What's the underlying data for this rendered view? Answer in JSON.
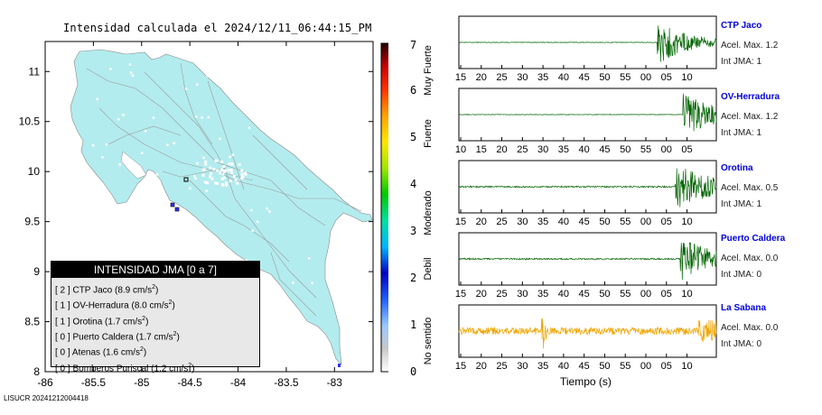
{
  "map": {
    "title": "Intensidad calculada el 2024/12/11_06:44:15_PM",
    "y_ticks": [
      "11",
      "10.5",
      "10",
      "9.5",
      "9",
      "8.5",
      "8"
    ],
    "x_ticks": [
      "-86",
      "-85.5",
      "-85",
      "-84.5",
      "-84",
      "-83.5",
      "-83"
    ],
    "footer": "LISUCR 20241212004418",
    "land_color": "#b3ecee"
  },
  "colorbar": {
    "ticks": [
      "7",
      "6",
      "5",
      "4",
      "3",
      "2",
      "1",
      "0"
    ],
    "labels": [
      "Muy Fuerte",
      "Fuerte",
      "Moderado",
      "Debil",
      "No sentido"
    ]
  },
  "legend": {
    "title": "INTENSIDAD JMA [0 a 7]",
    "items": [
      {
        "level": "[ 2 ]",
        "name": "CTP Jaco",
        "accel": "(8.9 cm/s",
        "unit_exp": "2",
        "close": ")"
      },
      {
        "level": "[ 1 ]",
        "name": "OV-Herradura",
        "accel": "(8.0 cm/s",
        "unit_exp": "2",
        "close": ")"
      },
      {
        "level": "[ 1 ]",
        "name": "Orotina",
        "accel": "(1.7 cm/s",
        "unit_exp": "2",
        "close": ")"
      },
      {
        "level": "[ 0 ]",
        "name": "Puerto Caldera",
        "accel": "(1.7 cm/s",
        "unit_exp": "2",
        "close": ")"
      },
      {
        "level": "[ 0 ]",
        "name": "Atenas",
        "accel": "(1.6 cm/s",
        "unit_exp": "2",
        "close": ")"
      },
      {
        "level": "[ 0 ]",
        "name": "Bomberos Puriscal",
        "accel": "(1.2 cm/s",
        "unit_exp": "2",
        "close": ")"
      }
    ]
  },
  "stations": [
    {
      "name": "CTP Jaco",
      "accel": "Acel. Max. 1.2",
      "jma": "Int JMA: 1",
      "ticks": [
        "15",
        "20",
        "25",
        "30",
        "35",
        "40",
        "45",
        "50",
        "55",
        "00",
        "05",
        "10"
      ],
      "color": "#006400"
    },
    {
      "name": "OV-Herradura",
      "accel": "Acel. Max. 1.2",
      "jma": "Int JMA: 1",
      "ticks": [
        "10",
        "15",
        "20",
        "25",
        "30",
        "35",
        "40",
        "45",
        "50",
        "55",
        "00",
        "05"
      ],
      "color": "#006400"
    },
    {
      "name": "Orotina",
      "accel": "Acel. Max. 0.5",
      "jma": "Int JMA: 1",
      "ticks": [
        "15",
        "20",
        "25",
        "30",
        "35",
        "40",
        "45",
        "50",
        "55",
        "00",
        "05",
        "10"
      ],
      "color": "#006400"
    },
    {
      "name": "Puerto Caldera",
      "accel": "Acel. Max. 0.0",
      "jma": "Int JMA: 0",
      "ticks": [
        "15",
        "20",
        "25",
        "30",
        "35",
        "40",
        "45",
        "50",
        "55",
        "00",
        "05",
        "10"
      ],
      "color": "#006400"
    },
    {
      "name": "La Sabana",
      "accel": "Acel. Max. 0.0",
      "jma": "Int JMA: 0",
      "ticks": [
        "15",
        "20",
        "25",
        "30",
        "35",
        "40",
        "45",
        "50",
        "55",
        "00",
        "05",
        "10"
      ],
      "color": "#f0a500"
    }
  ],
  "xlabel": "Tiempo (s)",
  "chart_data": [
    {
      "type": "heatmap",
      "title": "Intensidad calculada el 2024/12/11_06:44:15_PM",
      "x_range": [
        -86,
        -82.6
      ],
      "y_range": [
        8,
        11.3
      ],
      "colorbar_range": [
        0,
        7
      ],
      "colorbar_labels": [
        "No sentido",
        "Debil",
        "Moderado",
        "Fuerte",
        "Muy Fuerte"
      ],
      "legend": [
        {
          "station": "CTP Jaco",
          "jma": 2,
          "accel_cm_s2": 8.9
        },
        {
          "station": "OV-Herradura",
          "jma": 1,
          "accel_cm_s2": 8.0
        },
        {
          "station": "Orotina",
          "jma": 1,
          "accel_cm_s2": 1.7
        },
        {
          "station": "Puerto Caldera",
          "jma": 0,
          "accel_cm_s2": 1.7
        },
        {
          "station": "Atenas",
          "jma": 0,
          "accel_cm_s2": 1.6
        },
        {
          "station": "Bomberos Puriscal",
          "jma": 0,
          "accel_cm_s2": 1.2
        }
      ]
    },
    {
      "type": "line",
      "xlabel": "Tiempo (s)",
      "series": [
        {
          "name": "CTP Jaco",
          "acel_max": 1.2,
          "int_jma": 1
        },
        {
          "name": "OV-Herradura",
          "acel_max": 1.2,
          "int_jma": 1
        },
        {
          "name": "Orotina",
          "acel_max": 0.5,
          "int_jma": 1
        },
        {
          "name": "Puerto Caldera",
          "acel_max": 0.0,
          "int_jma": 0
        },
        {
          "name": "La Sabana",
          "acel_max": 0.0,
          "int_jma": 0
        }
      ]
    }
  ]
}
